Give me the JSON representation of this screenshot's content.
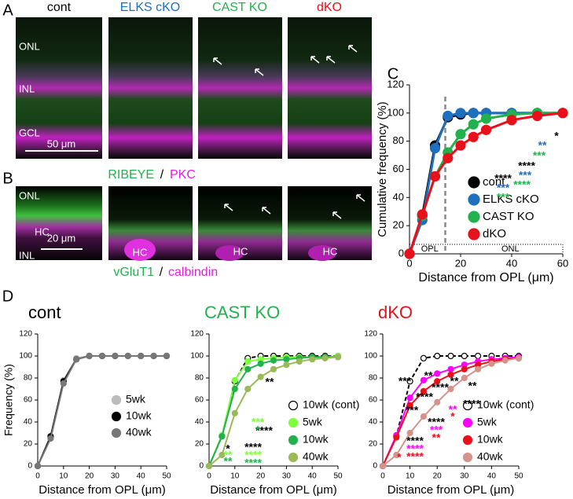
{
  "panels": {
    "A": {
      "label": "A",
      "columns": [
        "cont",
        "ELKS cKO",
        "CAST KO",
        "dKO"
      ],
      "column_colors": [
        "#000000",
        "#1f6fbf",
        "#22b14c",
        "#e8101a"
      ],
      "layers": [
        "ONL",
        "INL",
        "GCL"
      ],
      "scale_bar": "50 μm"
    },
    "B": {
      "label": "B",
      "title": [
        "RIBEYE",
        "/",
        "PKC"
      ],
      "title_colors": [
        "#22b14c",
        "#000000",
        "#e01ee0"
      ],
      "layers": [
        "ONL",
        "HC",
        "INL"
      ],
      "hc_labels": [
        "HC",
        "HC",
        "HC"
      ],
      "scale_bar": "20 μm",
      "caption": [
        "vGluT1",
        "/",
        "calbindin"
      ],
      "caption_colors": [
        "#22b14c",
        "#000000",
        "#e01ee0"
      ]
    },
    "C": {
      "label": "C"
    },
    "D": {
      "label": "D"
    }
  },
  "chart_data": [
    {
      "type": "line",
      "ylabel": "Cumulative frequency (%)",
      "xlabel": "Distance from OPL (μm)",
      "xlim": [
        0,
        60
      ],
      "xticks": [
        0,
        20,
        40,
        60
      ],
      "ylim": [
        0,
        120
      ],
      "yticks": [
        0,
        20,
        40,
        60,
        80,
        100,
        120
      ],
      "x": [
        0,
        5,
        10,
        15,
        20,
        25,
        30,
        40,
        50,
        60
      ],
      "series": [
        {
          "name": "cont",
          "color": "#000000",
          "values": [
            0,
            27,
            77,
            97,
            99,
            100,
            100,
            100,
            100,
            100
          ]
        },
        {
          "name": "ELKS cKO",
          "color": "#1f6fbf",
          "values": [
            0,
            24,
            75,
            98,
            100,
            100,
            100,
            100,
            100,
            100
          ]
        },
        {
          "name": "CAST KO",
          "color": "#22b14c",
          "values": [
            0,
            27,
            55,
            72,
            85,
            92,
            96,
            99,
            100,
            100
          ]
        },
        {
          "name": "dKO",
          "color": "#e8101a",
          "values": [
            0,
            28,
            55,
            68,
            77,
            83,
            88,
            95,
            98,
            100
          ]
        }
      ],
      "opl_boundary": 14,
      "regions": [
        "OPL",
        "ONL"
      ],
      "annotations": [
        {
          "text": "*",
          "color": "#000000"
        },
        {
          "text": "**",
          "color": "#1f6fbf"
        },
        {
          "text": "***",
          "color": "#22b14c"
        },
        {
          "text": "****",
          "color": "#000000"
        },
        {
          "text": "***",
          "color": "#1f6fbf"
        },
        {
          "text": "****",
          "color": "#22b14c"
        },
        {
          "text": "****",
          "color": "#000000"
        },
        {
          "text": "***",
          "color": "#1f6fbf"
        },
        {
          "text": "***",
          "color": "#22b14c"
        }
      ],
      "legend": "right"
    },
    {
      "type": "line",
      "title": "cont",
      "title_color": "#000000",
      "ylabel": "Frequency (%)",
      "xlabel": "Distance from OPL (μm)",
      "xlim": [
        0,
        50
      ],
      "xticks": [
        0,
        10,
        20,
        30,
        40,
        50
      ],
      "ylim": [
        0,
        120
      ],
      "yticks": [
        0,
        20,
        40,
        60,
        80,
        100,
        120
      ],
      "x": [
        0,
        5,
        10,
        15,
        20,
        25,
        30,
        35,
        40,
        45,
        50
      ],
      "series": [
        {
          "name": "5wk",
          "color": "#bbbbbb",
          "values": [
            0,
            26,
            78,
            98,
            100,
            100,
            100,
            100,
            100,
            100,
            100
          ]
        },
        {
          "name": "10wk",
          "color": "#000000",
          "values": [
            0,
            27,
            77,
            97,
            100,
            100,
            100,
            100,
            100,
            100,
            100
          ]
        },
        {
          "name": "40wk",
          "color": "#777777",
          "values": [
            0,
            25,
            75,
            97,
            100,
            100,
            100,
            100,
            100,
            100,
            100
          ]
        }
      ],
      "annotations": [],
      "legend": "lower right"
    },
    {
      "type": "line",
      "title": "CAST KO",
      "title_color": "#22b14c",
      "xlabel": "Distance from OPL (μm)",
      "xlim": [
        0,
        50
      ],
      "xticks": [
        0,
        10,
        20,
        30,
        40,
        50
      ],
      "ylim": [
        0,
        120
      ],
      "yticks": [
        0,
        20,
        40,
        60,
        80,
        100,
        120
      ],
      "x": [
        0,
        5,
        10,
        15,
        20,
        25,
        30,
        35,
        40,
        45,
        50
      ],
      "series": [
        {
          "name": "10wk (cont)",
          "color": "#000000",
          "marker": "open",
          "linestyle": "dashed",
          "values": [
            0,
            27,
            77,
            98,
            100,
            100,
            100,
            100,
            100,
            100,
            100
          ]
        },
        {
          "name": "5wk",
          "color": "#7fff3f",
          "values": [
            0,
            28,
            78,
            95,
            97,
            98,
            99,
            99,
            99,
            99,
            100
          ]
        },
        {
          "name": "10wk",
          "color": "#22b14c",
          "values": [
            0,
            27,
            70,
            88,
            93,
            96,
            97,
            98,
            99,
            99,
            99
          ]
        },
        {
          "name": "40wk",
          "color": "#9aba59",
          "values": [
            0,
            10,
            48,
            70,
            81,
            88,
            92,
            95,
            97,
            98,
            99
          ]
        }
      ],
      "annotations": [
        {
          "text": "**",
          "color": "#000000"
        },
        {
          "text": "****",
          "color": "#000000"
        },
        {
          "text": "***",
          "color": "#7fff3f"
        },
        {
          "text": "*",
          "color": "#22b14c"
        },
        {
          "text": "****",
          "color": "#000000"
        },
        {
          "text": "****",
          "color": "#7fff3f"
        },
        {
          "text": "****",
          "color": "#22b14c"
        },
        {
          "text": "*",
          "color": "#000000"
        },
        {
          "text": "**",
          "color": "#7fff3f"
        },
        {
          "text": "**",
          "color": "#22b14c"
        }
      ],
      "legend": "lower right"
    },
    {
      "type": "line",
      "title": "dKO",
      "title_color": "#e8101a",
      "xlabel": "Distance from OPL (μm)",
      "xlim": [
        0,
        50
      ],
      "xticks": [
        0,
        10,
        20,
        30,
        40,
        50
      ],
      "ylim": [
        0,
        120
      ],
      "yticks": [
        0,
        20,
        40,
        60,
        80,
        100,
        120
      ],
      "x": [
        0,
        5,
        10,
        15,
        20,
        25,
        30,
        35,
        40,
        45,
        50
      ],
      "series": [
        {
          "name": "10wk (cont)",
          "color": "#000000",
          "marker": "open",
          "linestyle": "dashed",
          "values": [
            0,
            27,
            77,
            98,
            100,
            100,
            100,
            100,
            100,
            100,
            100
          ]
        },
        {
          "name": "5wk",
          "color": "#ff00ff",
          "values": [
            0,
            28,
            62,
            78,
            84,
            88,
            92,
            95,
            97,
            98,
            99
          ]
        },
        {
          "name": "10wk",
          "color": "#e8101a",
          "values": [
            0,
            26,
            55,
            68,
            77,
            83,
            88,
            92,
            95,
            97,
            98
          ]
        },
        {
          "name": "40wk",
          "color": "#d4938b",
          "values": [
            0,
            10,
            30,
            45,
            58,
            70,
            80,
            88,
            93,
            96,
            98
          ]
        }
      ],
      "annotations": [
        {
          "text": "**",
          "color": "#000000"
        },
        {
          "text": "***",
          "color": "#000000"
        },
        {
          "text": "**",
          "color": "#000000"
        },
        {
          "text": "****",
          "color": "#000000"
        },
        {
          "text": "**",
          "color": "#000000"
        },
        {
          "text": "****",
          "color": "#000000"
        },
        {
          "text": "***",
          "color": "#000000"
        },
        {
          "text": "****",
          "color": "#000000"
        },
        {
          "text": "**",
          "color": "#ff00ff"
        },
        {
          "text": "*",
          "color": "#e8101a"
        },
        {
          "text": "****",
          "color": "#000000"
        },
        {
          "text": "***",
          "color": "#ff00ff"
        },
        {
          "text": "**",
          "color": "#e8101a"
        },
        {
          "text": "****",
          "color": "#000000"
        },
        {
          "text": "****",
          "color": "#ff00ff"
        },
        {
          "text": "****",
          "color": "#e8101a"
        },
        {
          "text": "*",
          "color": "#e8101a"
        }
      ],
      "legend": "lower right"
    }
  ]
}
